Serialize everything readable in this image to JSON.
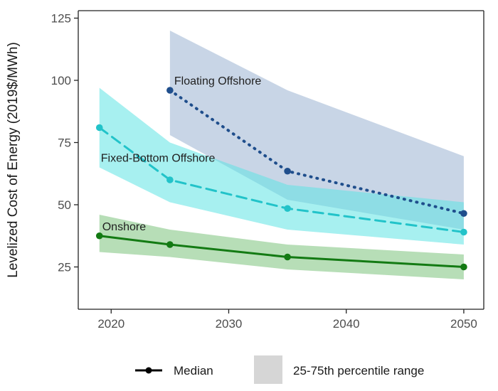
{
  "chart_data": {
    "type": "line",
    "xlabel": "",
    "ylabel": "Levelized Cost of Energy (2019$/MWh)",
    "xlim": [
      2017.2,
      2051.7
    ],
    "ylim": [
      8,
      128
    ],
    "x_ticks": [
      "2020",
      "2030",
      "2040",
      "2050"
    ],
    "x_tick_values": [
      2020,
      2030,
      2040,
      2050
    ],
    "y_ticks": [
      "25",
      "50",
      "75",
      "100",
      "125"
    ],
    "y_tick_values": [
      25,
      50,
      75,
      100,
      125
    ],
    "grid": false,
    "legend": {
      "placement": "bottom",
      "median_label": "Median",
      "range_label": "25-75th percentile range"
    },
    "series": [
      {
        "name": "Floating Offshore",
        "color": "#1f4e8c",
        "band_color": "#a7bcd6",
        "line_style": "dotted",
        "x": [
          2025,
          2035,
          2050
        ],
        "median": [
          96,
          63.5,
          46.5
        ],
        "low": [
          78,
          52,
          40
        ],
        "high": [
          120,
          96,
          69.5
        ]
      },
      {
        "name": "Fixed-Bottom Offshore",
        "color": "#22c3c9",
        "band_color": "#5fe3e3",
        "line_style": "dashed",
        "x": [
          2019,
          2025,
          2035,
          2050
        ],
        "median": [
          81,
          60,
          48.5,
          39
        ],
        "low": [
          65,
          51,
          40,
          34
        ],
        "high": [
          97,
          75,
          58,
          51
        ]
      },
      {
        "name": "Onshore",
        "color": "#137a13",
        "band_color": "#7cc27c",
        "line_style": "solid",
        "x": [
          2019,
          2025,
          2035,
          2050
        ],
        "median": [
          37.5,
          34,
          29,
          25
        ],
        "low": [
          31,
          29,
          24,
          20
        ],
        "high": [
          46,
          40,
          34,
          30
        ]
      }
    ]
  }
}
